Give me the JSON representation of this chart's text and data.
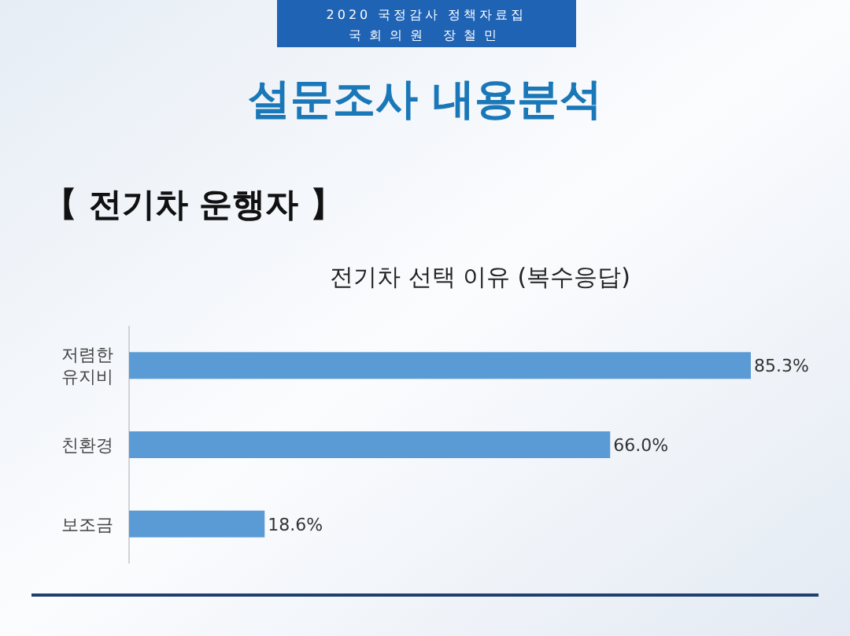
{
  "chart_data": {
    "type": "bar",
    "orientation": "horizontal",
    "title": "전기차 선택 이유 (복수응답)",
    "subtitle": "【 전기차 운행자 】",
    "annotations": [
      "2020 국정감사 정책자료집",
      "국회의원 장철민",
      "설문조사 내용분석"
    ],
    "categories": [
      "저렴한 유지비",
      "친환경",
      "보조금"
    ],
    "values": [
      85.3,
      66.0,
      18.6
    ],
    "value_labels": [
      "85.3%",
      "66.0%",
      "18.6%"
    ],
    "color": "#5b9bd5"
  }
}
